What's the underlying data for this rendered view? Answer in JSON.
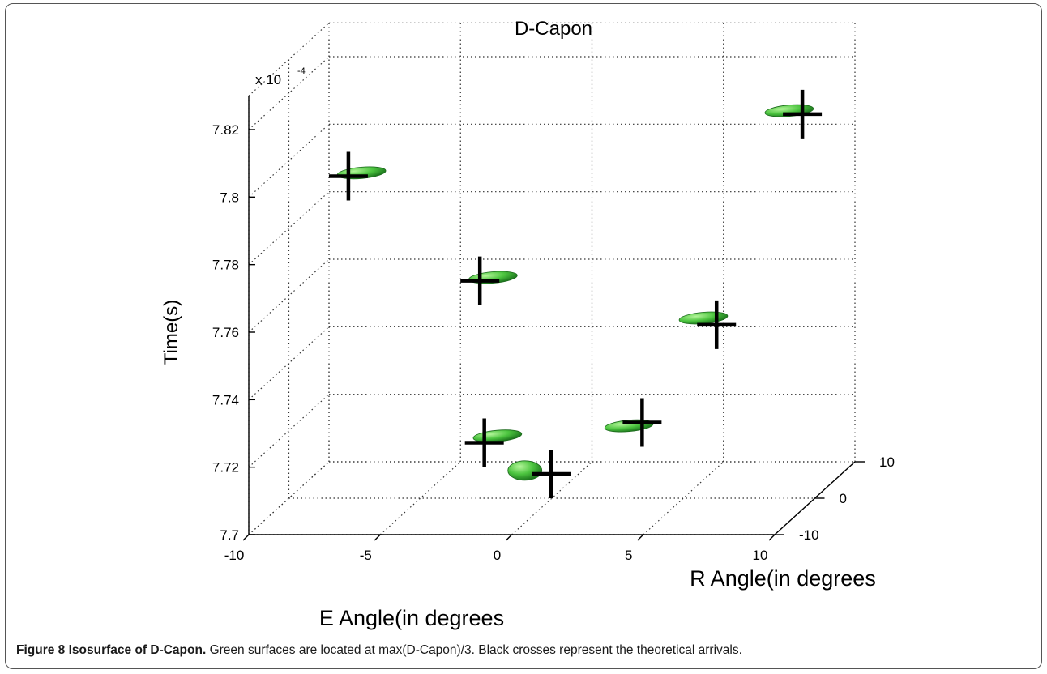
{
  "chart_data": {
    "type": "scatter",
    "title": "D-Capon",
    "xlabel": "E Angle(in degrees",
    "ylabel": "R Angle(in degrees",
    "zlabel": "Time(s)",
    "z_exponent_label": "x 10",
    "z_exponent_power": "-4",
    "xlim": [
      -10,
      10
    ],
    "ylim": [
      -10,
      10
    ],
    "zlim": [
      7.7,
      7.83
    ],
    "x_ticks": [
      "-10",
      "-5",
      "0",
      "5",
      "10"
    ],
    "y_ticks": [
      "-10",
      "0",
      "10"
    ],
    "z_ticks": [
      "7.7",
      "7.72",
      "7.74",
      "7.76",
      "7.78",
      "7.8",
      "7.82"
    ],
    "grid": true,
    "series": [
      {
        "marker": "green-ellipsoid",
        "color": "#3fbf3f",
        "points": [
          {
            "x": -8.0,
            "y": 5.0,
            "z": 7.791
          },
          {
            "x": -3.0,
            "y": 5.0,
            "z": 7.76
          },
          {
            "x": -1.0,
            "y": -7.0,
            "z": 7.726
          },
          {
            "x": 0.5,
            "y": -10.0,
            "z": 7.719
          },
          {
            "x": 4.0,
            "y": -7.0,
            "z": 7.729
          },
          {
            "x": 5.0,
            "y": 5.0,
            "z": 7.748
          },
          {
            "x": 7.5,
            "y": 10.0,
            "z": 7.804
          }
        ]
      },
      {
        "marker": "black-cross",
        "color": "#000000",
        "points": [
          {
            "x": -8.5,
            "y": 5.0,
            "z": 7.79
          },
          {
            "x": -3.5,
            "y": 5.0,
            "z": 7.759
          },
          {
            "x": -1.5,
            "y": -7.0,
            "z": 7.724
          },
          {
            "x": 1.5,
            "y": -10.0,
            "z": 7.718
          },
          {
            "x": 4.5,
            "y": -7.0,
            "z": 7.73
          },
          {
            "x": 5.5,
            "y": 5.0,
            "z": 7.746
          },
          {
            "x": 8.0,
            "y": 10.0,
            "z": 7.803
          }
        ]
      }
    ]
  },
  "caption": {
    "label": "Figure 8 Isosurface of D-Capon.",
    "text": " Green surfaces are located at max(D-Capon)/3. Black crosses represent the theoretical arrivals."
  },
  "colors": {
    "surface": "#3fbf3f",
    "surface_highlight": "#a8f08a",
    "surface_shadow": "#1f7a1f",
    "cross": "#000000",
    "grid": "#333333"
  }
}
